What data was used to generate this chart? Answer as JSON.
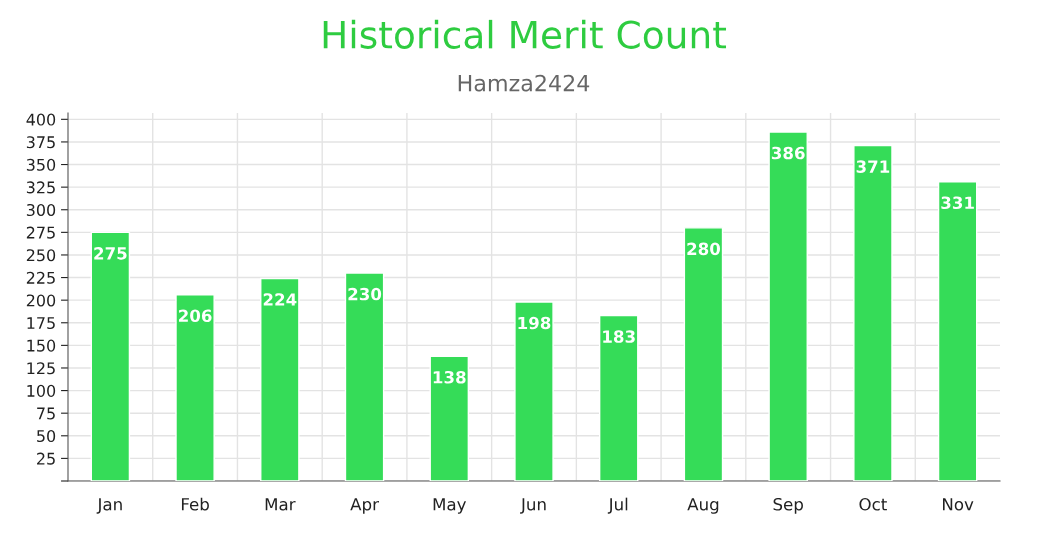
{
  "chart_data": {
    "type": "bar",
    "title": "Historical Merit Count",
    "subtitle": "Hamza2424",
    "categories": [
      "Jan",
      "Feb",
      "Mar",
      "Apr",
      "May",
      "Jun",
      "Jul",
      "Aug",
      "Sep",
      "Oct",
      "Nov"
    ],
    "values": [
      275,
      206,
      224,
      230,
      138,
      198,
      183,
      280,
      386,
      371,
      331
    ],
    "color": "#35dc58",
    "ylim": [
      0,
      407
    ],
    "yticks": [
      {
        "value": 0,
        "label": null
      },
      25,
      50,
      75,
      100,
      125,
      150,
      175,
      200,
      225,
      250,
      275,
      300,
      325,
      350,
      375,
      400
    ],
    "grid": true,
    "data_labels": true
  }
}
